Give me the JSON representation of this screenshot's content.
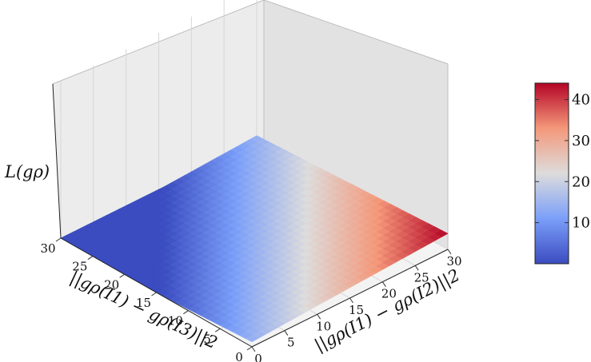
{
  "chart_data": {
    "type": "surface",
    "xlabel": "||gρ(I1) − gρ(I2)||2",
    "ylabel": "||gρ(I1) − gρ(I3)||2",
    "zlabel": "L(gρ)",
    "x_ticks": [
      0,
      5,
      10,
      15,
      20,
      25,
      30
    ],
    "y_ticks": [
      0,
      5,
      10,
      15,
      20,
      25,
      30
    ],
    "xlim": [
      0,
      30
    ],
    "ylim": [
      0,
      30
    ],
    "zlim": [
      0,
      44
    ],
    "margin": 14,
    "colormap": "coolwarm",
    "colorbar": {
      "ticks": [
        10,
        20,
        30,
        40
      ],
      "tick_labels": [
        "10",
        "20",
        "30",
        "40"
      ],
      "min": 0,
      "max": 44,
      "low_color": "#3b4cc0",
      "mid_color": "#dddddd",
      "high_color": "#b40426"
    },
    "surface_corners": [
      {
        "x": 0,
        "y": 0,
        "z": 14
      },
      {
        "x": 30,
        "y": 0,
        "z": 44
      },
      {
        "x": 0,
        "y": 30,
        "z": 0
      },
      {
        "x": 30,
        "y": 30,
        "z": 16
      }
    ],
    "grid": true
  }
}
